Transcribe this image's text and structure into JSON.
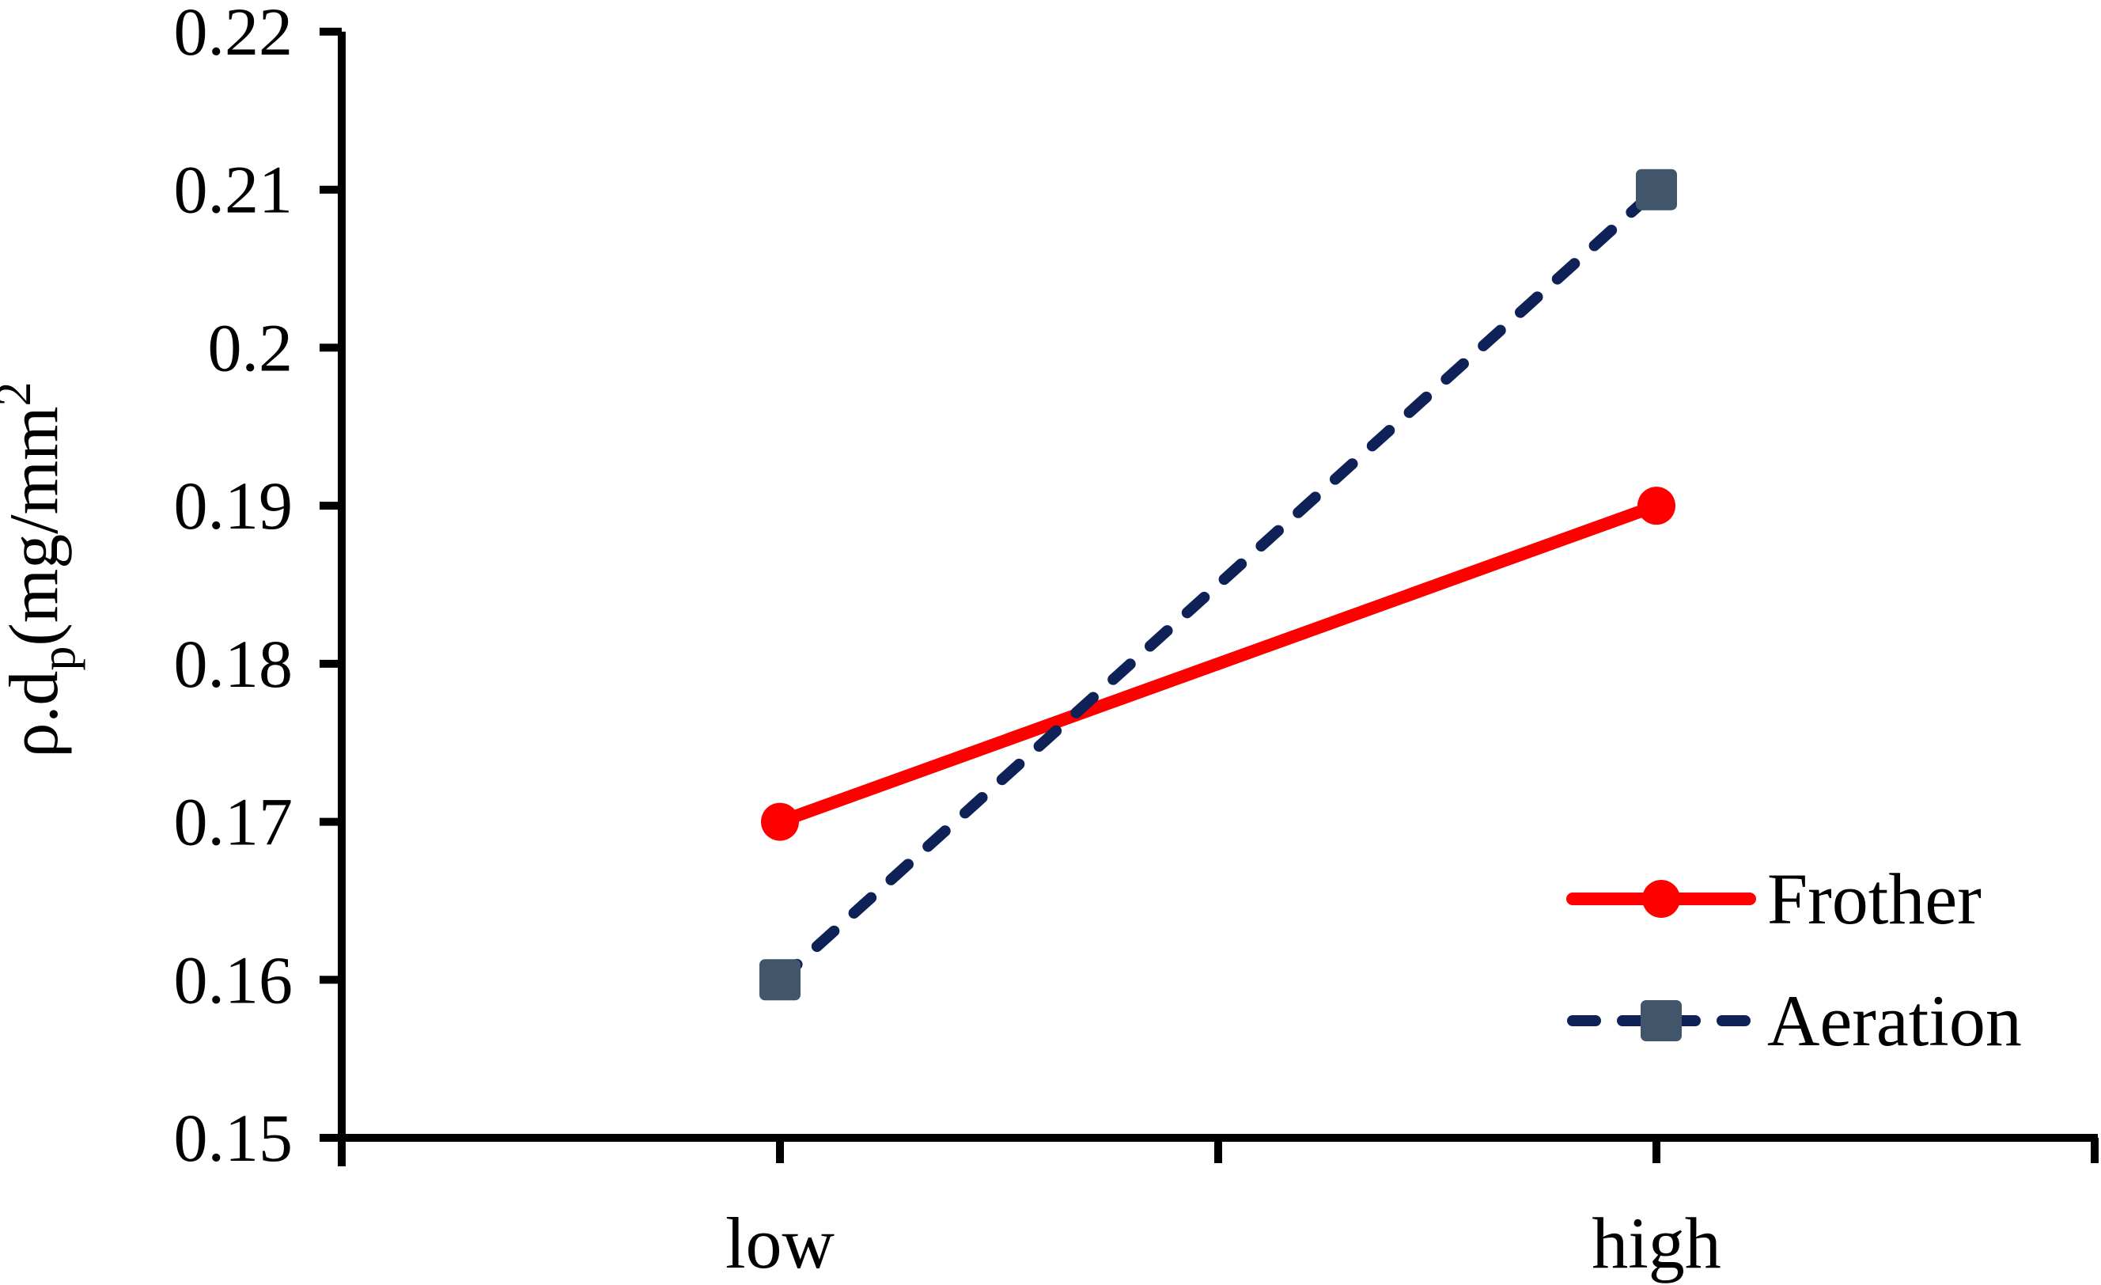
{
  "chart_data": {
    "type": "line",
    "title": "",
    "xlabel": "",
    "ylabel": "ρ.dp(mg/mm2",
    "ylabel_parts": {
      "prefix": "ρ.d",
      "subscript": "p",
      "middle": "(mg/mm",
      "superscript": "2"
    },
    "categories": [
      "low",
      "high"
    ],
    "series": [
      {
        "name": "Frother",
        "values": [
          0.17,
          0.19
        ],
        "line_color": "#FF0000",
        "line_style": "solid",
        "marker": "circle",
        "marker_color": "#FF0000"
      },
      {
        "name": "Aeration",
        "values": [
          0.16,
          0.21
        ],
        "line_color": "#0E2257",
        "line_style": "dashed",
        "marker": "square",
        "marker_color": "#41566B"
      }
    ],
    "ylim": [
      0.15,
      0.22
    ],
    "ytick_labels": [
      "0.15",
      "0.16",
      "0.17",
      "0.18",
      "0.19",
      "0.2",
      "0.21",
      "0.22"
    ],
    "grid": false,
    "legend_position": "right-center",
    "legend": [
      "Frother",
      "Aeration"
    ],
    "axis_color": "#000000",
    "background_color": "#FFFFFF"
  }
}
